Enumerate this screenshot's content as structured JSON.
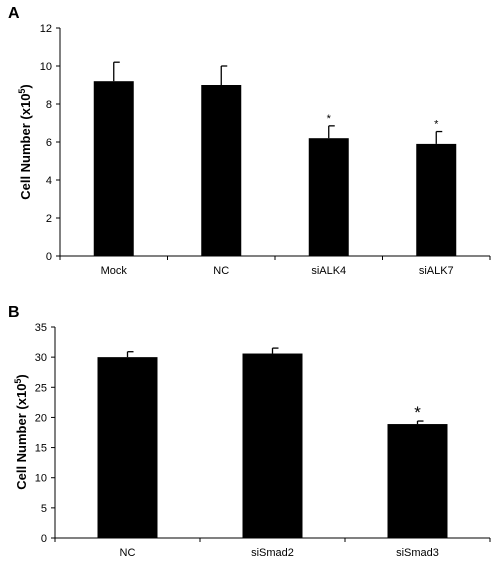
{
  "chart_data": [
    {
      "panel": "A",
      "type": "bar",
      "ylabel": "Cell Number (x10",
      "ylabel_sup": "5",
      "ylabel_close": ")",
      "categories": [
        "Mock",
        "NC",
        "siALK4",
        "siALK7"
      ],
      "values": [
        9.2,
        9.0,
        6.2,
        5.9
      ],
      "errors": [
        1.0,
        1.0,
        0.65,
        0.65
      ],
      "significance": [
        "",
        "",
        "*",
        "*"
      ],
      "ylim": [
        0,
        12
      ],
      "yticks": [
        "0",
        "2",
        "4",
        "6",
        "8",
        "10",
        "12"
      ],
      "bar_color": "#000000",
      "grid": false
    },
    {
      "panel": "B",
      "type": "bar",
      "ylabel": "Cell Number (x10",
      "ylabel_sup": "5",
      "ylabel_close": ")",
      "categories": [
        "NC",
        "siSmad2",
        "siSmad3"
      ],
      "values": [
        30.0,
        30.6,
        18.9
      ],
      "errors": [
        0.9,
        0.9,
        0.5
      ],
      "significance": [
        "",
        "",
        "*"
      ],
      "ylim": [
        0,
        35
      ],
      "yticks": [
        "0",
        "5",
        "10",
        "15",
        "20",
        "25",
        "30",
        "35"
      ],
      "bar_color": "#000000",
      "grid": false
    }
  ]
}
